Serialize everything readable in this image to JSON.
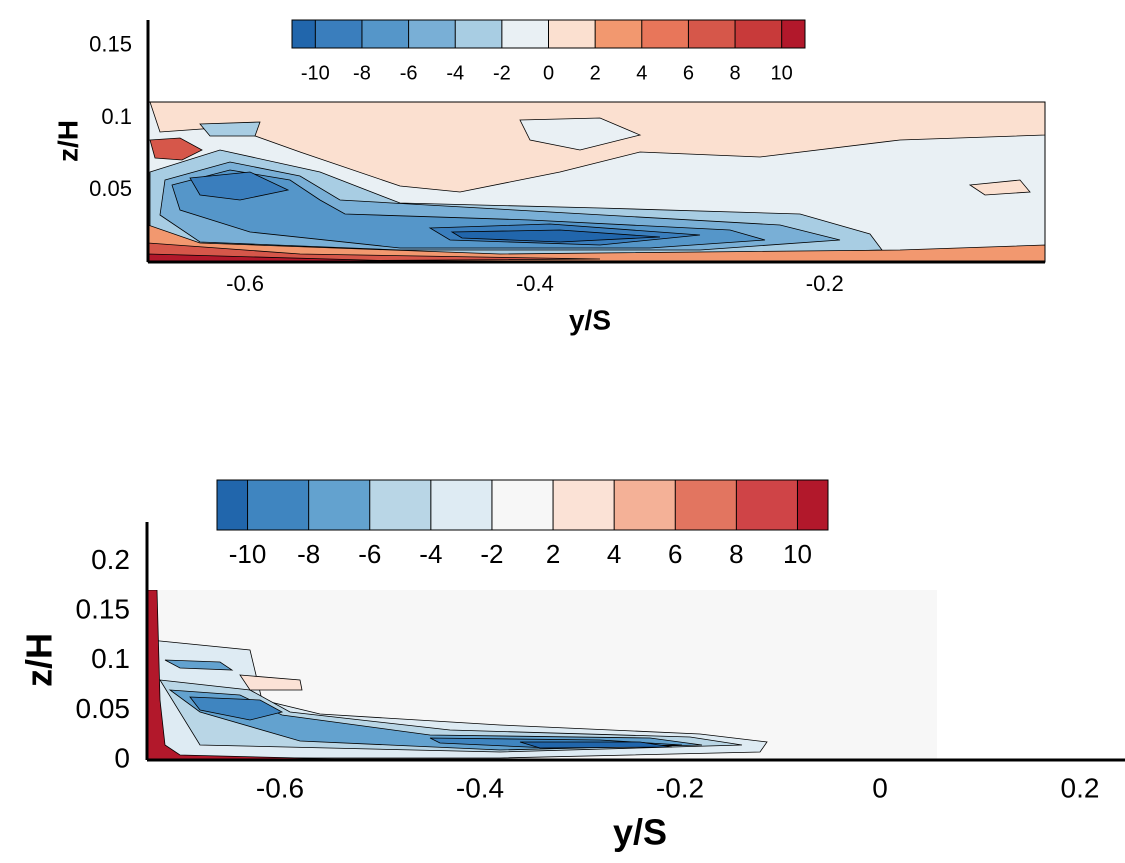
{
  "chart_data": [
    {
      "type": "contour",
      "xlabel": "y/S",
      "ylabel": "z/H",
      "xlim": [
        -0.667,
        -0.048
      ],
      "ylim": [
        0,
        0.168
      ],
      "xticks": [
        -0.6,
        -0.4,
        -0.2
      ],
      "yticks": [
        0.05,
        0.1,
        0.15
      ],
      "colorbar": {
        "ticks": [
          -10,
          -8,
          -6,
          -4,
          -2,
          0,
          2,
          4,
          6,
          8,
          10
        ],
        "colors": [
          "#2166ac",
          "#3a7ebd",
          "#5596c9",
          "#79afd6",
          "#a8cde3",
          "#e9f0f4",
          "#fbe0d0",
          "#f2986f",
          "#e8765a",
          "#d6574a",
          "#c83a3a",
          "#b2182b"
        ]
      }
    },
    {
      "type": "contour",
      "xlabel": "y/S",
      "ylabel": "z/H",
      "xlim": [
        -0.733,
        0.245
      ],
      "ylim": [
        0,
        0.24
      ],
      "xticks": [
        -0.6,
        -0.4,
        -0.2,
        0,
        0.2
      ],
      "yticks": [
        0,
        0.05,
        0.1,
        0.15,
        0.2
      ],
      "colorbar": {
        "ticks": [
          -10,
          -8,
          -6,
          -4,
          -2,
          2,
          4,
          6,
          8,
          10
        ],
        "colors": [
          "#2166ac",
          "#3f85c0",
          "#63a2cf",
          "#b9d6e6",
          "#deebf3",
          "#f7f7f7",
          "#fbe2d6",
          "#f4b197",
          "#e27560",
          "#cf4447",
          "#b2182b"
        ]
      }
    }
  ]
}
